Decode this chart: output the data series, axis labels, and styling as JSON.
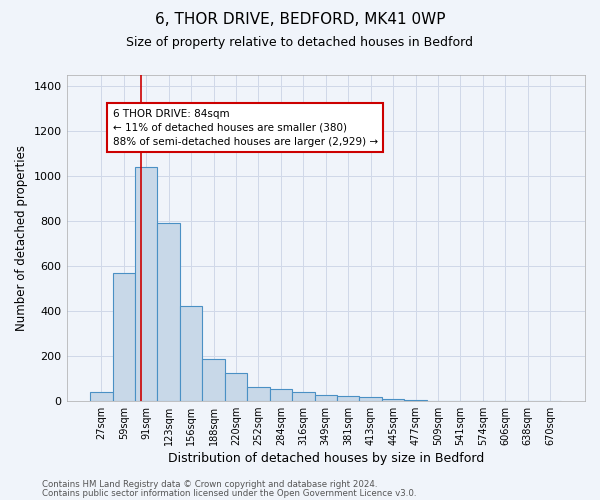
{
  "title": "6, THOR DRIVE, BEDFORD, MK41 0WP",
  "subtitle": "Size of property relative to detached houses in Bedford",
  "xlabel": "Distribution of detached houses by size in Bedford",
  "ylabel": "Number of detached properties",
  "footnote1": "Contains HM Land Registry data © Crown copyright and database right 2024.",
  "footnote2": "Contains public sector information licensed under the Open Government Licence v3.0.",
  "bar_labels": [
    "27sqm",
    "59sqm",
    "91sqm",
    "123sqm",
    "156sqm",
    "188sqm",
    "220sqm",
    "252sqm",
    "284sqm",
    "316sqm",
    "349sqm",
    "381sqm",
    "413sqm",
    "445sqm",
    "477sqm",
    "509sqm",
    "541sqm",
    "574sqm",
    "606sqm",
    "638sqm",
    "670sqm"
  ],
  "bar_values": [
    40,
    570,
    1040,
    790,
    420,
    185,
    125,
    60,
    50,
    40,
    25,
    22,
    18,
    8,
    5,
    0,
    0,
    0,
    0,
    0,
    0
  ],
  "bar_color": "#c8d8e8",
  "bar_edge_color": "#4a90c4",
  "bar_edge_width": 0.8,
  "vline_x": 1.75,
  "vline_color": "#cc0000",
  "vline_linewidth": 1.2,
  "ylim": [
    0,
    1450
  ],
  "yticks": [
    0,
    200,
    400,
    600,
    800,
    1000,
    1200,
    1400
  ],
  "annotation_text": "6 THOR DRIVE: 84sqm\n← 11% of detached houses are smaller (380)\n88% of semi-detached houses are larger (2,929) →",
  "annotation_box_color": "#ffffff",
  "annotation_box_edge_color": "#cc0000",
  "annotation_fontsize": 7.5,
  "grid_color": "#d0d8e8",
  "background_color": "#f0f4fa",
  "title_fontsize": 11,
  "subtitle_fontsize": 9,
  "ylabel_fontsize": 8.5,
  "xlabel_fontsize": 9
}
